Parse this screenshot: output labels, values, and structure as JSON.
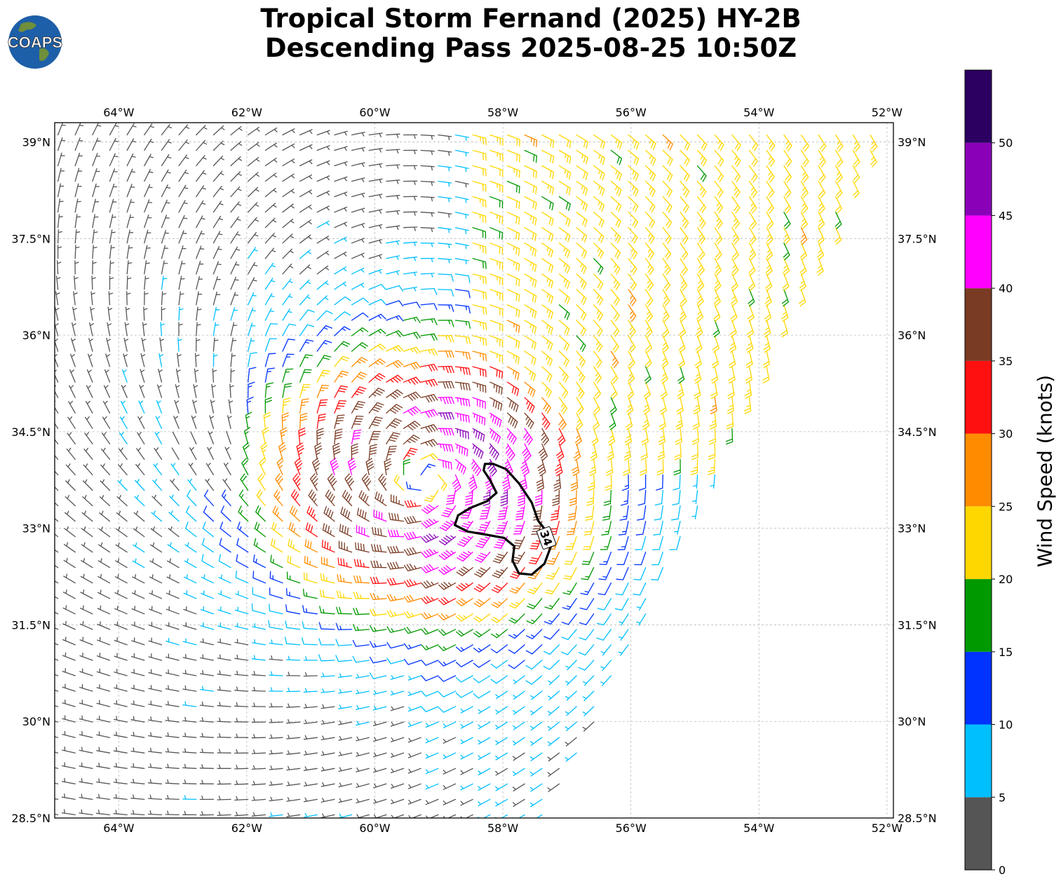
{
  "title": {
    "line1": "Tropical Storm Fernand (2025) HY-2B",
    "line2": "Descending Pass 2025-08-25 10:50Z"
  },
  "logo": {
    "text": "COAPS",
    "icon": "globe-logo"
  },
  "map": {
    "lon_range": [
      -65,
      -51.9
    ],
    "lat_range": [
      28.5,
      39.3
    ],
    "gridlines": "dashed",
    "lon_ticks": [
      {
        "value": -64,
        "label": "64°W"
      },
      {
        "value": -62,
        "label": "62°W"
      },
      {
        "value": -60,
        "label": "60°W"
      },
      {
        "value": -58,
        "label": "58°W"
      },
      {
        "value": -56,
        "label": "56°W"
      },
      {
        "value": -54,
        "label": "54°W"
      },
      {
        "value": -52,
        "label": "52°W"
      }
    ],
    "lat_ticks": [
      {
        "value": 39,
        "label": "39°N"
      },
      {
        "value": 37.5,
        "label": "37.5°N"
      },
      {
        "value": 36,
        "label": "36°N"
      },
      {
        "value": 34.5,
        "label": "34.5°N"
      },
      {
        "value": 33,
        "label": "33°N"
      },
      {
        "value": 31.5,
        "label": "31.5°N"
      },
      {
        "value": 30,
        "label": "30°N"
      },
      {
        "value": 28.5,
        "label": "28.5°N"
      }
    ],
    "storm_center": {
      "lon": -59.2,
      "lat": 33.75
    },
    "swath_east_edge": [
      {
        "lon": -52.0,
        "lat": 39.3
      },
      {
        "lon": -57.3,
        "lat": 28.5
      }
    ],
    "contour_34kt": {
      "label": "34",
      "points": [
        [
          -58.28,
          34.0
        ],
        [
          -58.15,
          34.0
        ],
        [
          -57.95,
          33.92
        ],
        [
          -57.75,
          33.7
        ],
        [
          -57.55,
          33.4
        ],
        [
          -57.45,
          33.12
        ],
        [
          -57.28,
          32.9
        ],
        [
          -57.25,
          32.72
        ],
        [
          -57.35,
          32.45
        ],
        [
          -57.55,
          32.28
        ],
        [
          -57.75,
          32.3
        ],
        [
          -57.85,
          32.5
        ],
        [
          -57.82,
          32.72
        ],
        [
          -57.98,
          32.85
        ],
        [
          -58.25,
          32.9
        ],
        [
          -58.55,
          32.95
        ],
        [
          -58.75,
          33.05
        ],
        [
          -58.7,
          33.2
        ],
        [
          -58.5,
          33.32
        ],
        [
          -58.25,
          33.42
        ],
        [
          -58.1,
          33.55
        ],
        [
          -58.2,
          33.75
        ],
        [
          -58.3,
          33.9
        ]
      ]
    }
  },
  "colorbar": {
    "label": "Wind Speed (knots)",
    "bins": [
      {
        "min": 0,
        "max": 5,
        "color": "#555555"
      },
      {
        "min": 5,
        "max": 10,
        "color": "#00bfff"
      },
      {
        "min": 10,
        "max": 15,
        "color": "#0033ff"
      },
      {
        "min": 15,
        "max": 20,
        "color": "#009900"
      },
      {
        "min": 20,
        "max": 25,
        "color": "#ffd700"
      },
      {
        "min": 25,
        "max": 30,
        "color": "#ff8c00"
      },
      {
        "min": 30,
        "max": 35,
        "color": "#ff1010"
      },
      {
        "min": 35,
        "max": 40,
        "color": "#7a3b24"
      },
      {
        "min": 40,
        "max": 45,
        "color": "#ff00ff"
      },
      {
        "min": 45,
        "max": 50,
        "color": "#8a00b8"
      },
      {
        "min": 50,
        "max": 55,
        "color": "#2b0061"
      }
    ],
    "ticks": [
      "0",
      "5",
      "10",
      "15",
      "20",
      "25",
      "30",
      "35",
      "40",
      "45",
      "50"
    ]
  }
}
